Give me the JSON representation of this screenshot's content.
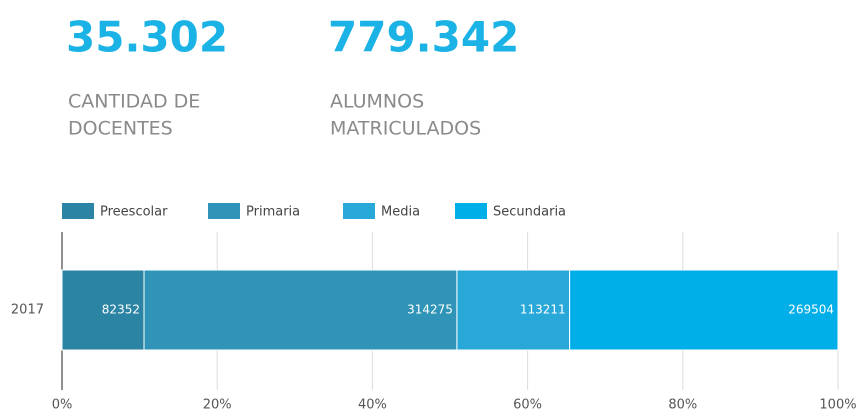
{
  "stats": [
    {
      "number": "35.302",
      "label_lines": [
        "CANTIDAD DE",
        "DOCENTES"
      ]
    },
    {
      "number": "779.342",
      "label_lines": [
        "ALUMNOS",
        "MATRICULADOS"
      ]
    }
  ],
  "chart_data": {
    "type": "stacked-bar-horizontal-percent",
    "categories": [
      "2017"
    ],
    "series": [
      {
        "name": "Preescolar",
        "color": "#2b84a3",
        "values": [
          82352
        ]
      },
      {
        "name": "Primaria",
        "color": "#2f94b7",
        "values": [
          314275
        ]
      },
      {
        "name": "Media",
        "color": "#27a8d8",
        "values": [
          113211
        ]
      },
      {
        "name": "Secundaria",
        "color": "#00aee8",
        "values": [
          269504
        ]
      }
    ],
    "xlim": [
      0,
      100
    ],
    "xticks": [
      {
        "value": 0,
        "label": "0%"
      },
      {
        "value": 20,
        "label": "20%"
      },
      {
        "value": 40,
        "label": "40%"
      },
      {
        "value": 60,
        "label": "60%"
      },
      {
        "value": 80,
        "label": "80%"
      },
      {
        "value": 100,
        "label": "100%"
      }
    ],
    "grid": true,
    "legend": "top"
  }
}
